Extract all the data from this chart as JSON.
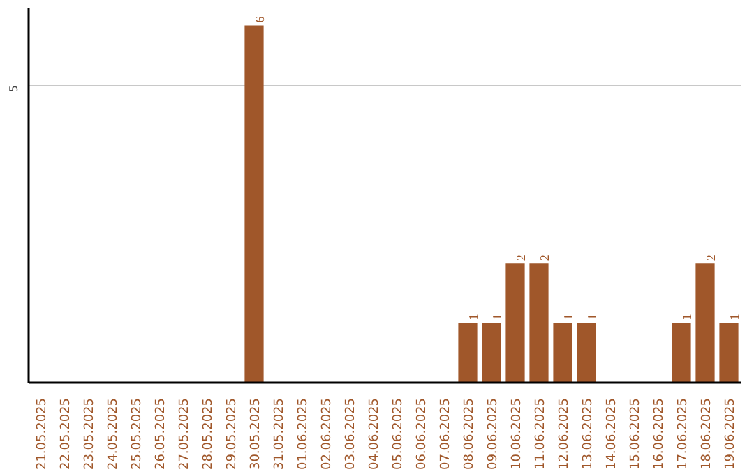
{
  "chart_data": {
    "type": "bar",
    "categories": [
      "21.05.2025",
      "22.05.2025",
      "23.05.2025",
      "24.05.2025",
      "25.05.2025",
      "26.05.2025",
      "27.05.2025",
      "28.05.2025",
      "29.05.2025",
      "30.05.2025",
      "31.05.2025",
      "01.06.2025",
      "02.06.2025",
      "03.06.2025",
      "04.06.2025",
      "05.06.2025",
      "06.06.2025",
      "07.06.2025",
      "08.06.2025",
      "09.06.2025",
      "10.06.2025",
      "11.06.2025",
      "12.06.2025",
      "13.06.2025",
      "14.06.2025",
      "15.06.2025",
      "16.06.2025",
      "17.06.2025",
      "18.06.2025",
      "19.06.2025"
    ],
    "values": [
      0,
      0,
      0,
      0,
      0,
      0,
      0,
      0,
      0,
      6,
      0,
      0,
      0,
      0,
      0,
      0,
      0,
      0,
      1,
      1,
      2,
      2,
      1,
      1,
      0,
      0,
      0,
      1,
      2,
      1
    ],
    "value_labels": [
      null,
      null,
      null,
      null,
      null,
      null,
      null,
      null,
      null,
      "6",
      null,
      null,
      null,
      null,
      null,
      null,
      null,
      null,
      "1",
      "1",
      "2",
      "2",
      "1",
      "1",
      null,
      null,
      null,
      "1",
      "2",
      "1"
    ],
    "color": "#a0572a",
    "ylim": [
      0,
      6.3
    ],
    "yticks": [
      5
    ],
    "grid": "y"
  }
}
